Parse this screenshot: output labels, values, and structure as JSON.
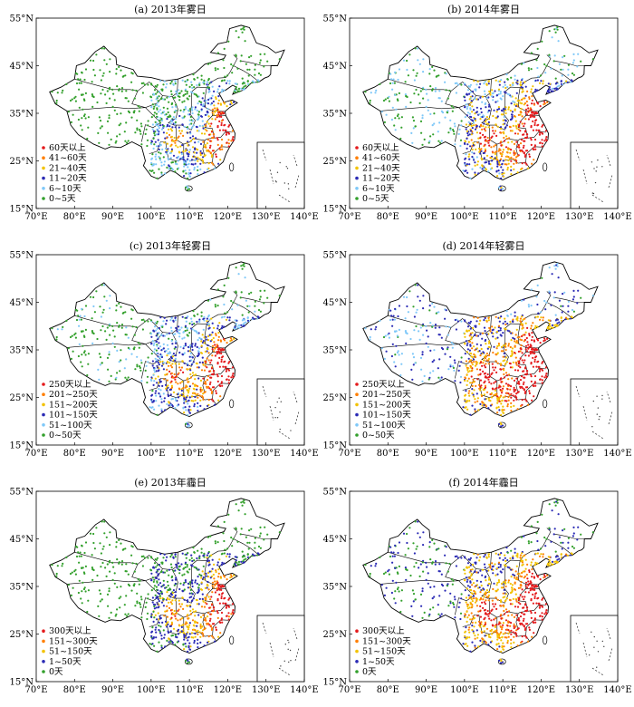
{
  "panels": [
    {
      "title": "(a) 2013年雾日",
      "legend": [
        {
          "label": "60天以上",
          "color": "#e41a1c"
        },
        {
          "label": "41~60天",
          "color": "#ff7f00"
        },
        {
          "label": "21~40天",
          "color": "#f2c200"
        },
        {
          "label": "11~20天",
          "color": "#2b2bb5"
        },
        {
          "label": "6~10天",
          "color": "#7fc8f8"
        },
        {
          "label": "0~5天",
          "color": "#33a02c"
        }
      ]
    },
    {
      "title": "(b) 2014年雾日",
      "legend": [
        {
          "label": "60天以上",
          "color": "#e41a1c"
        },
        {
          "label": "41~60天",
          "color": "#ff7f00"
        },
        {
          "label": "21~40天",
          "color": "#f2c200"
        },
        {
          "label": "11~20天",
          "color": "#2b2bb5"
        },
        {
          "label": "6~10天",
          "color": "#7fc8f8"
        },
        {
          "label": "0~5天",
          "color": "#33a02c"
        }
      ]
    },
    {
      "title": "(c) 2013年轻雾日",
      "legend": [
        {
          "label": "250天以上",
          "color": "#e41a1c"
        },
        {
          "label": "201~250天",
          "color": "#ff7f00"
        },
        {
          "label": "151~200天",
          "color": "#f2c200"
        },
        {
          "label": "101~150天",
          "color": "#2b2bb5"
        },
        {
          "label": "51~100天",
          "color": "#7fc8f8"
        },
        {
          "label": "0~50天",
          "color": "#33a02c"
        }
      ]
    },
    {
      "title": "(d) 2014年轻雾日",
      "legend": [
        {
          "label": "250天以上",
          "color": "#e41a1c"
        },
        {
          "label": "201~250天",
          "color": "#ff7f00"
        },
        {
          "label": "151~200天",
          "color": "#f2c200"
        },
        {
          "label": "101~150天",
          "color": "#2b2bb5"
        },
        {
          "label": "51~100天",
          "color": "#7fc8f8"
        },
        {
          "label": "0~50天",
          "color": "#33a02c"
        }
      ]
    },
    {
      "title": "(e) 2013年霾日",
      "legend": [
        {
          "label": "300天以上",
          "color": "#e41a1c"
        },
        {
          "label": "151~300天",
          "color": "#ff7f00"
        },
        {
          "label": "51~150天",
          "color": "#f2c200"
        },
        {
          "label": "1~50天",
          "color": "#2b2bb5"
        },
        {
          "label": "0天",
          "color": "#33a02c"
        }
      ]
    },
    {
      "title": "(f) 2014年霾日",
      "legend": [
        {
          "label": "300天以上",
          "color": "#e41a1c"
        },
        {
          "label": "151~300天",
          "color": "#ff7f00"
        },
        {
          "label": "51~150天",
          "color": "#f2c200"
        },
        {
          "label": "1~50天",
          "color": "#2b2bb5"
        },
        {
          "label": "0天",
          "color": "#33a02c"
        }
      ]
    }
  ],
  "axes": {
    "x_ticks": [
      "70°E",
      "80°E",
      "90°E",
      "100°E",
      "110°E",
      "120°E",
      "130°E",
      "140°E"
    ],
    "y_ticks": [
      "55°N",
      "45°N",
      "35°N",
      "25°N",
      "15°N"
    ]
  }
}
